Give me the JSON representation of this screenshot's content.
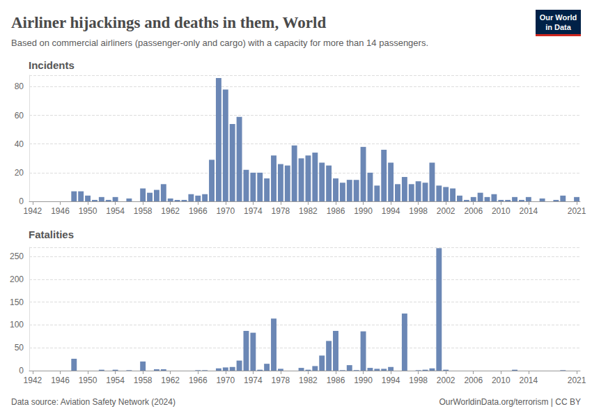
{
  "header": {
    "title": "Airliner hijackings and deaths in them, World",
    "subtitle": "Based on commercial airliners (passenger-only and cargo) with a capacity for more than 14 passengers.",
    "logo": [
      "Our World",
      "in Data"
    ]
  },
  "footer": {
    "source": "Data source: Aviation Safety Network (2024)",
    "credit": "OurWorldinData.org/terrorism | CC BY"
  },
  "chart_data": [
    {
      "type": "bar",
      "title": "Incidents",
      "color": "#6b87b5",
      "grid": true,
      "categories": [
        "1942",
        null,
        null,
        null,
        "1946",
        null,
        null,
        null,
        "1950",
        null,
        null,
        null,
        "1954",
        null,
        null,
        null,
        "1958",
        null,
        null,
        null,
        "1962",
        null,
        null,
        null,
        "1966",
        null,
        null,
        null,
        "1970",
        null,
        null,
        null,
        "1974",
        null,
        null,
        null,
        "1978",
        null,
        null,
        null,
        "1982",
        null,
        null,
        null,
        "1986",
        null,
        null,
        null,
        "1990",
        null,
        null,
        null,
        "1994",
        null,
        null,
        null,
        "1998",
        null,
        null,
        null,
        "2002",
        null,
        null,
        null,
        "2006",
        null,
        null,
        null,
        "2010",
        null,
        null,
        null,
        "2014",
        null,
        null,
        null,
        null,
        null,
        null,
        "2021"
      ],
      "values": [
        0,
        0,
        0,
        0,
        0,
        0,
        7,
        7,
        4,
        1,
        3,
        1,
        3,
        0,
        2,
        0,
        9,
        6,
        8,
        12,
        2,
        1,
        1,
        5,
        4,
        5,
        29,
        86,
        78,
        54,
        59,
        22,
        20,
        20,
        16,
        32,
        26,
        25,
        39,
        30,
        32,
        34,
        27,
        25,
        16,
        13,
        15,
        15,
        38,
        20,
        11,
        36,
        27,
        12,
        17,
        12,
        14,
        13,
        27,
        11,
        10,
        9,
        4,
        1,
        3,
        6,
        3,
        5,
        1,
        1,
        3,
        1,
        3,
        0,
        2,
        0,
        1,
        4,
        0,
        3
      ],
      "ylim": [
        0,
        88
      ],
      "yticks": [
        0,
        20,
        40,
        60,
        80
      ]
    },
    {
      "type": "bar",
      "title": "Fatalities",
      "color": "#6b87b5",
      "grid": true,
      "categories": [
        "1942",
        null,
        null,
        null,
        "1946",
        null,
        null,
        null,
        "1950",
        null,
        null,
        null,
        "1954",
        null,
        null,
        null,
        "1958",
        null,
        null,
        null,
        "1962",
        null,
        null,
        null,
        "1966",
        null,
        null,
        null,
        "1970",
        null,
        null,
        null,
        "1974",
        null,
        null,
        null,
        "1978",
        null,
        null,
        null,
        "1982",
        null,
        null,
        null,
        "1986",
        null,
        null,
        null,
        "1990",
        null,
        null,
        null,
        "1994",
        null,
        null,
        null,
        "1998",
        null,
        null,
        null,
        "2002",
        null,
        null,
        null,
        "2006",
        null,
        null,
        null,
        "2010",
        null,
        null,
        null,
        "2014",
        null,
        null,
        null,
        null,
        null,
        null,
        "2021"
      ],
      "values": [
        0,
        0,
        0,
        0,
        0,
        0,
        26,
        0,
        0,
        0,
        2,
        0,
        2,
        0,
        1,
        0,
        20,
        0,
        3,
        3,
        0,
        0,
        0,
        0,
        1,
        1,
        0,
        5,
        7,
        8,
        22,
        87,
        83,
        2,
        15,
        114,
        4,
        0,
        0,
        6,
        2,
        10,
        33,
        65,
        87,
        1,
        12,
        1,
        86,
        6,
        4,
        4,
        8,
        0,
        125,
        0,
        1,
        2,
        5,
        268,
        2,
        0,
        0,
        0,
        0,
        0,
        0,
        0,
        0,
        0,
        2,
        0,
        0,
        0,
        0,
        0,
        0,
        1,
        0,
        0
      ],
      "ylim": [
        0,
        270
      ],
      "yticks": [
        0,
        50,
        100,
        150,
        200,
        250
      ]
    }
  ]
}
